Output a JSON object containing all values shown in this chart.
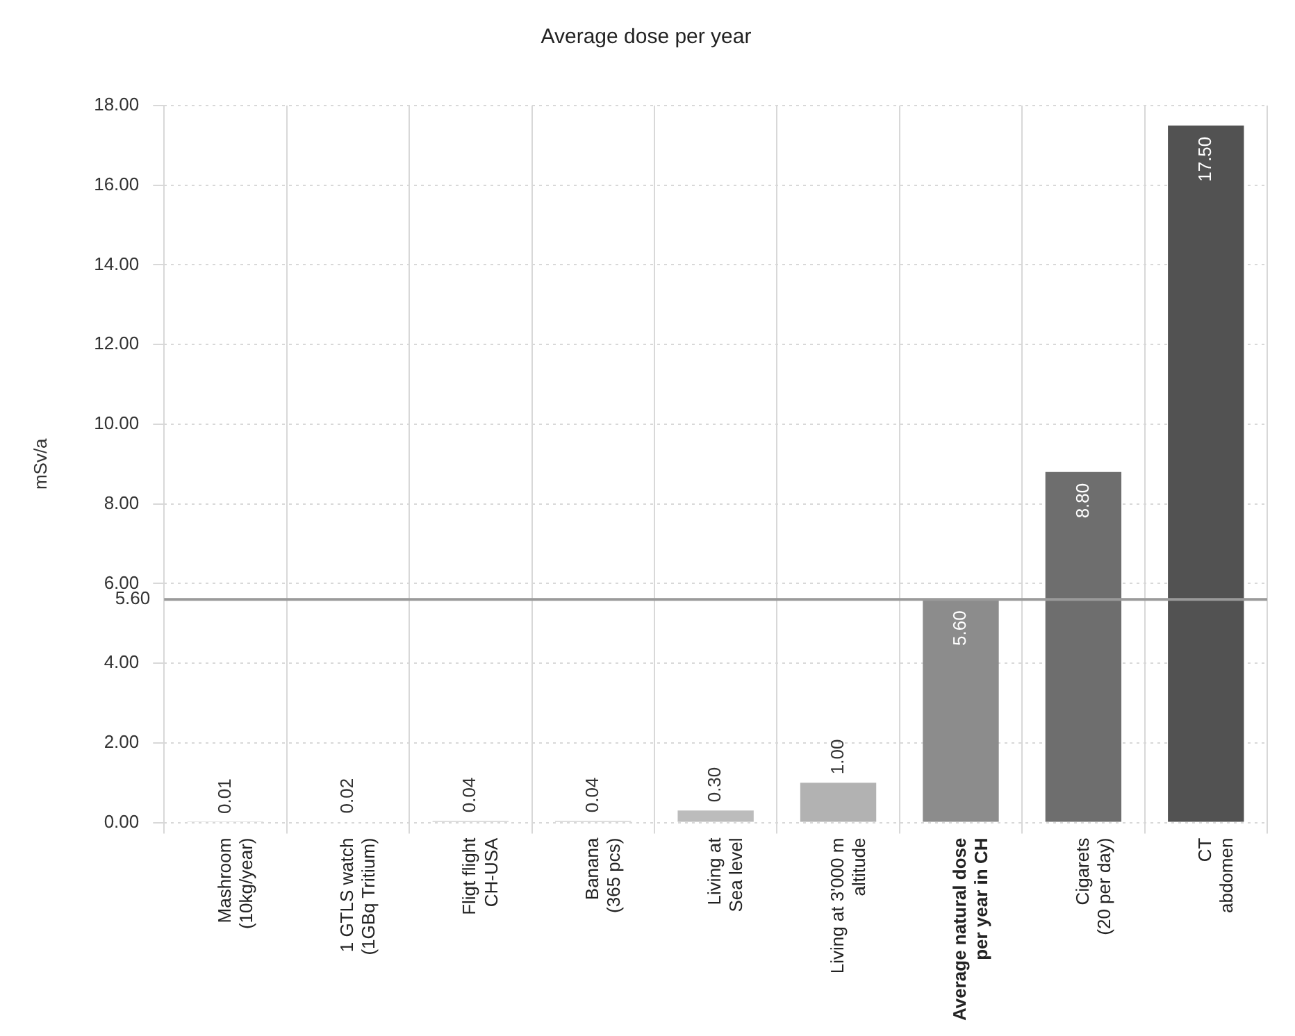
{
  "chart_data": {
    "type": "bar",
    "title": "Average dose per year",
    "ylabel": "mSv/a",
    "categories": [
      "Mashroom\n(10kg/year)",
      "1 GTLS watch\n(1GBq Tritium)",
      "Fligt flight\nCH-USA",
      "Banana\n(365 pcs)",
      "Living at\nSea level",
      "Living at 3'000 m\naltitude",
      "Average natural dose\nper year in CH",
      "Cigarets\n(20 per day)",
      "CT\nabdomen"
    ],
    "values": [
      0.01,
      0.02,
      0.04,
      0.04,
      0.3,
      1.0,
      5.6,
      8.8,
      17.5
    ],
    "value_labels": [
      "0.01",
      "0.02",
      "0.04",
      "0.04",
      "0.30",
      "1.00",
      "5.60",
      "8.80",
      "17.50"
    ],
    "colors": [
      "#c8c8c8",
      "#c8c8c8",
      "#c8c8c8",
      "#c8c8c8",
      "#bcbcbc",
      "#b2b2b2",
      "#8c8c8c",
      "#6e6e6e",
      "#525252"
    ],
    "ylim": [
      0,
      18
    ],
    "yticks": [
      {
        "value": 0,
        "label": "0.00"
      },
      {
        "value": 2,
        "label": "2.00"
      },
      {
        "value": 4,
        "label": "4.00"
      },
      {
        "value": 6,
        "label": "6.00"
      },
      {
        "value": 8,
        "label": "8.00"
      },
      {
        "value": 10,
        "label": "10.00"
      },
      {
        "value": 12,
        "label": "12.00"
      },
      {
        "value": 14,
        "label": "14.00"
      },
      {
        "value": 16,
        "label": "16.00"
      },
      {
        "value": 18,
        "label": "18.00"
      }
    ],
    "ref_lines": [
      {
        "axis": "y",
        "value": 5.6,
        "label": "5.60",
        "color": "#9a9a9a"
      }
    ],
    "grid": true,
    "legend": false
  }
}
